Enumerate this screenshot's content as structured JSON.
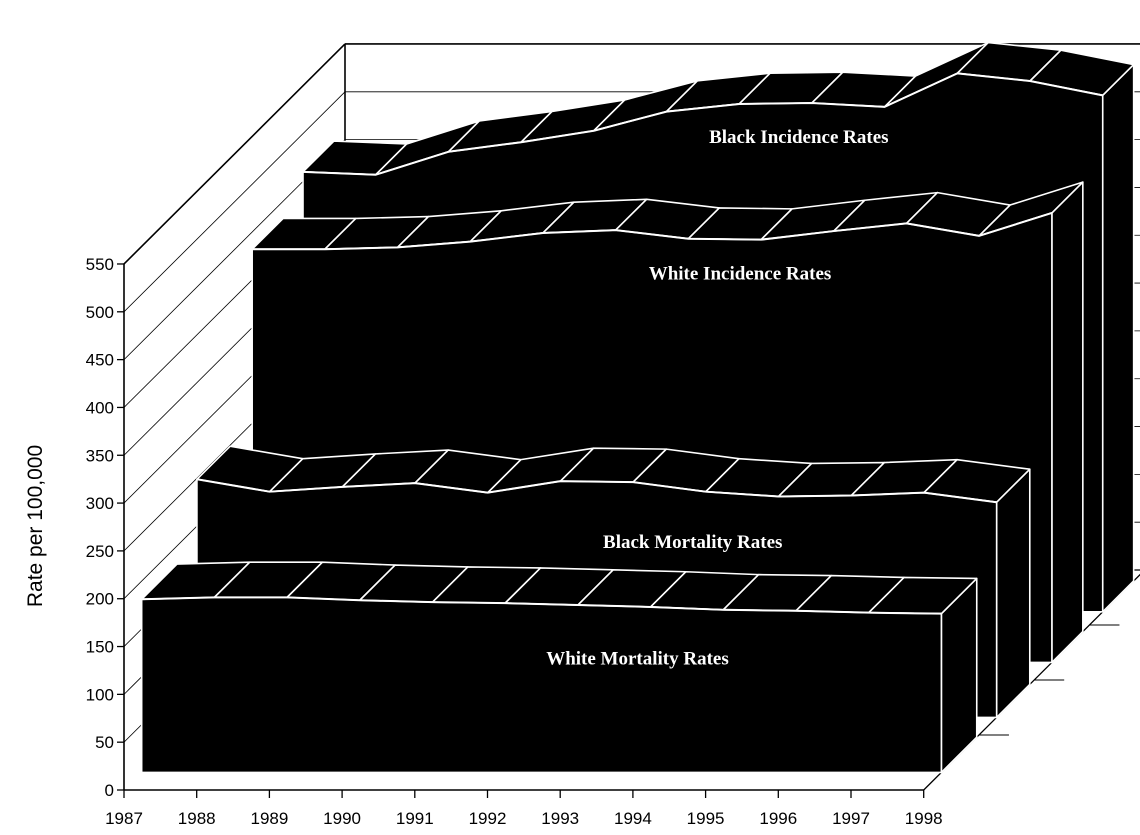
{
  "chart_data": {
    "type": "area",
    "title": "",
    "xlabel": "",
    "ylabel": "Rate per 100,000",
    "x": [
      1987,
      1988,
      1989,
      1990,
      1991,
      1992,
      1993,
      1994,
      1995,
      1996,
      1997,
      1998
    ],
    "ylim": [
      0,
      550
    ],
    "yticks": [
      0,
      50,
      100,
      150,
      200,
      250,
      300,
      350,
      400,
      450,
      500,
      550
    ],
    "grid": true,
    "legend": "none",
    "series": [
      {
        "name": "White Mortality Rates",
        "values": [
          181,
          183,
          183,
          180,
          178,
          177,
          175,
          173,
          170,
          169,
          167,
          166
        ]
      },
      {
        "name": "Black Mortality Rates",
        "values": [
          249,
          236,
          241,
          245,
          235,
          247,
          246,
          236,
          231,
          232,
          235,
          225
        ]
      },
      {
        "name": "White Incidence Rates",
        "values": [
          432,
          432,
          434,
          440,
          449,
          452,
          443,
          442,
          451,
          459,
          446,
          470
        ]
      },
      {
        "name": "Black Incidence Rates",
        "values": [
          460,
          457,
          481,
          491,
          503,
          523,
          531,
          532,
          528,
          563,
          555,
          540
        ]
      }
    ],
    "colors": {
      "fill": "#000000",
      "edge": "#ffffff",
      "frame": "#000000",
      "grid": "#000000"
    }
  }
}
